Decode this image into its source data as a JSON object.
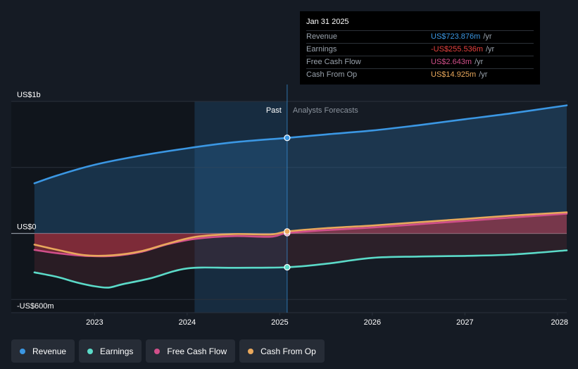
{
  "chart_data": {
    "type": "area",
    "y_ticks": [
      {
        "label": "US$1b",
        "value": 1000
      },
      {
        "label": "US$0",
        "value": 0
      },
      {
        "label": "-US$600m",
        "value": -600
      }
    ],
    "y_gridlines": [
      1000,
      500,
      0,
      -500
    ],
    "ylim": [
      -600,
      1000
    ],
    "x_ticks": [
      "2023",
      "2024",
      "2025",
      "2026",
      "2027",
      "2028"
    ],
    "x_tick_values": [
      2023,
      2024,
      2025,
      2026,
      2027,
      2028
    ],
    "xlim": [
      2022.1,
      2028.1
    ],
    "past_label": "Past",
    "forecast_label": "Analysts Forecasts",
    "past_end": 2025.08,
    "highlight_start": 2024.08,
    "series": [
      {
        "name": "Revenue",
        "color": "#3b97e3",
        "x": [
          2022.35,
          2022.6,
          2023.0,
          2023.5,
          2024.0,
          2024.5,
          2025.08,
          2025.5,
          2026.0,
          2026.5,
          2027.0,
          2027.5,
          2028.1
        ],
        "y": [
          380,
          440,
          520,
          590,
          645,
          690,
          724,
          750,
          780,
          820,
          865,
          910,
          970
        ]
      },
      {
        "name": "Earnings",
        "color": "#5bdac8",
        "x": [
          2022.35,
          2022.6,
          2022.8,
          2023.0,
          2023.15,
          2023.3,
          2023.6,
          2024.0,
          2024.5,
          2025.08,
          2025.5,
          2026.0,
          2026.5,
          2027.0,
          2027.5,
          2028.1
        ],
        "y": [
          -295,
          -330,
          -370,
          -400,
          -410,
          -385,
          -340,
          -265,
          -260,
          -256,
          -230,
          -185,
          -175,
          -170,
          -160,
          -128
        ]
      },
      {
        "name": "Free Cash Flow",
        "color": "#d14f8a",
        "x": [
          2022.35,
          2022.6,
          2022.9,
          2023.2,
          2023.5,
          2023.8,
          2024.1,
          2024.5,
          2024.9,
          2025.08,
          2025.5,
          2026.0,
          2026.5,
          2027.0,
          2027.5,
          2028.1
        ],
        "y": [
          -125,
          -150,
          -170,
          -170,
          -140,
          -80,
          -40,
          -20,
          -25,
          2.6,
          25,
          45,
          70,
          95,
          120,
          150
        ]
      },
      {
        "name": "Cash From Op",
        "color": "#e9a85c",
        "x": [
          2022.35,
          2022.6,
          2022.9,
          2023.2,
          2023.5,
          2023.8,
          2024.1,
          2024.5,
          2024.9,
          2025.08,
          2025.5,
          2026.0,
          2026.5,
          2027.0,
          2027.5,
          2028.1
        ],
        "y": [
          -85,
          -125,
          -165,
          -165,
          -135,
          -75,
          -25,
          -5,
          -8,
          14.9,
          40,
          60,
          85,
          110,
          135,
          160
        ]
      }
    ],
    "tooltip": {
      "date": "Jan 31 2025",
      "rows": [
        {
          "label": "Revenue",
          "value": "US$723.876m",
          "unit": "/yr",
          "color": "#3b97e3"
        },
        {
          "label": "Earnings",
          "value": "-US$255.536m",
          "unit": "/yr",
          "color": "#e8423f"
        },
        {
          "label": "Free Cash Flow",
          "value": "US$2.643m",
          "unit": "/yr",
          "color": "#d14f8a"
        },
        {
          "label": "Cash From Op",
          "value": "US$14.925m",
          "unit": "/yr",
          "color": "#e9a85c"
        }
      ]
    }
  },
  "legend": [
    {
      "label": "Revenue",
      "color": "#3b97e3"
    },
    {
      "label": "Earnings",
      "color": "#5bdac8"
    },
    {
      "label": "Free Cash Flow",
      "color": "#d14f8a"
    },
    {
      "label": "Cash From Op",
      "color": "#e9a85c"
    }
  ]
}
